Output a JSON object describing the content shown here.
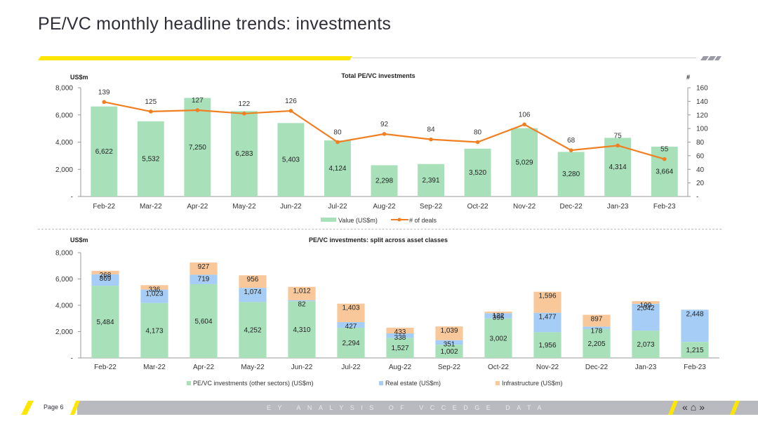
{
  "page": {
    "title": "PE/VC monthly headline trends: investments",
    "page_number": "Page 6",
    "footer_text": "EY ANALYSIS OF VCCEDGE DATA",
    "nav_icons": [
      "previous-icon",
      "home-icon",
      "next-icon"
    ]
  },
  "colors": {
    "value_bar": "#a7e0b9",
    "deals_line": "#f07f21",
    "real_estate": "#a5cdf5",
    "infrastructure": "#f9c89a",
    "accent_yellow": "#ffe600",
    "rule_grey": "#cccccc",
    "footer_grey": "#b9b9c0"
  },
  "chart_data": [
    {
      "type": "bar",
      "title": "Total PE/VC investments",
      "ylabel": "US$m",
      "y2label": "#",
      "ylim": [
        0,
        8000
      ],
      "y2lim": [
        0,
        160
      ],
      "yticks": [
        "-",
        "2,000",
        "4,000",
        "6,000",
        "8,000"
      ],
      "y2ticks": [
        "-",
        "20",
        "40",
        "60",
        "80",
        "100",
        "120",
        "140",
        "160"
      ],
      "categories": [
        "Feb-22",
        "Mar-22",
        "Apr-22",
        "May-22",
        "Jun-22",
        "Jul-22",
        "Aug-22",
        "Sep-22",
        "Oct-22",
        "Nov-22",
        "Dec-22",
        "Jan-23",
        "Feb-23"
      ],
      "series": [
        {
          "name": "Value (US$m)",
          "type": "bar",
          "values": [
            6622,
            5532,
            7250,
            6283,
            5403,
            4124,
            2298,
            2391,
            3520,
            5029,
            3280,
            4314,
            3664
          ],
          "labels": [
            "6,622",
            "5,532",
            "7,250",
            "6,283",
            "5,403",
            "4,124",
            "2,298",
            "2,391",
            "3,520",
            "5,029",
            "3,280",
            "4,314",
            "3,664"
          ]
        },
        {
          "name": "# of deals",
          "type": "line",
          "values": [
            139,
            125,
            127,
            122,
            126,
            80,
            92,
            84,
            80,
            106,
            68,
            75,
            55
          ],
          "labels": [
            "139",
            "125",
            "127",
            "122",
            "126",
            "80",
            "92",
            "84",
            "80",
            "106",
            "68",
            "75",
            "55"
          ]
        }
      ],
      "legend": "bottom",
      "grid": false
    },
    {
      "type": "bar",
      "stacked": true,
      "title": "PE/VC investments: split across asset classes",
      "ylabel": "US$m",
      "ylim": [
        0,
        8000
      ],
      "yticks": [
        "-",
        "2,000",
        "4,000",
        "6,000",
        "8,000"
      ],
      "categories": [
        "Feb-22",
        "Mar-22",
        "Apr-22",
        "May-22",
        "Jun-22",
        "Jul-22",
        "Aug-22",
        "Sep-22",
        "Oct-22",
        "Nov-22",
        "Dec-22",
        "Jan-23",
        "Feb-23"
      ],
      "series": [
        {
          "name": "PE/VC investments (other sectors) (US$m)",
          "values": [
            5484,
            4173,
            5604,
            4252,
            4310,
            2294,
            1527,
            1002,
            3002,
            1956,
            2205,
            2073,
            1215
          ],
          "labels": [
            "5,484",
            "4,173",
            "5,604",
            "4,252",
            "4,310",
            "2,294",
            "1,527",
            "1,002",
            "3,002",
            "1,956",
            "2,205",
            "2,073",
            "1,215"
          ]
        },
        {
          "name": "Real estate (US$m)",
          "values": [
            869,
            1023,
            719,
            1074,
            82,
            427,
            338,
            351,
            395,
            1477,
            178,
            2042,
            2448
          ],
          "labels": [
            "869",
            "1,023",
            "719",
            "1,074",
            "82",
            "427",
            "338",
            "351",
            "395",
            "1,477",
            "178",
            "2,042",
            "2,448"
          ]
        },
        {
          "name": "Infrastructure (US$m)",
          "values": [
            268,
            336,
            927,
            956,
            1012,
            1403,
            433,
            1039,
            122,
            1596,
            897,
            199,
            0
          ],
          "labels": [
            "268",
            "336",
            "927",
            "956",
            "1,012",
            "1,403",
            "433",
            "1,039",
            "122",
            "1,596",
            "897",
            "199",
            ""
          ]
        }
      ],
      "legend": "bottom",
      "grid": false
    }
  ]
}
